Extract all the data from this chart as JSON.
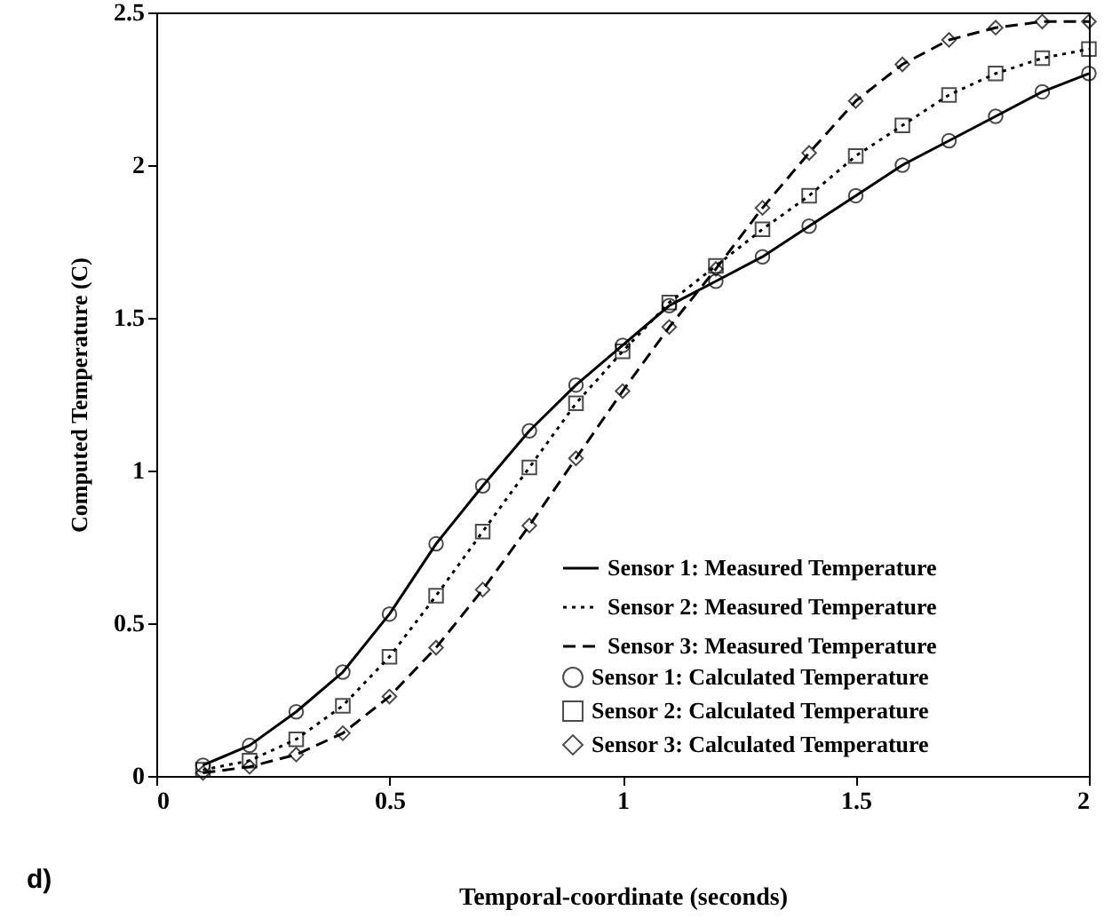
{
  "chart_data": {
    "type": "line",
    "xlabel": "Temporal-coordinate (seconds)",
    "ylabel": "Computed Temperature (C)",
    "annotations": [
      "d)"
    ],
    "x": [
      0.1,
      0.2,
      0.3,
      0.4,
      0.5,
      0.6,
      0.7,
      0.8,
      0.9,
      1.0,
      1.1,
      1.2,
      1.3,
      1.4,
      1.5,
      1.6,
      1.7,
      1.8,
      1.9,
      2.0
    ],
    "xlim": [
      0,
      2
    ],
    "xticks": [
      0,
      0.5,
      1,
      1.5,
      2
    ],
    "ylim": [
      0,
      2.5
    ],
    "yticks": [
      0,
      0.5,
      1,
      1.5,
      2,
      2.5
    ],
    "grid": false,
    "legend": "bottom right",
    "series": [
      {
        "name": "Sensor 1: Measured Temperature",
        "line_style": "solid",
        "color": "#000000",
        "values": [
          0.035,
          0.1,
          0.21,
          0.34,
          0.53,
          0.76,
          0.95,
          1.13,
          1.28,
          1.41,
          1.54,
          1.62,
          1.7,
          1.8,
          1.9,
          2.0,
          2.08,
          2.16,
          2.24,
          2.3
        ]
      },
      {
        "name": "Sensor 2: Measured Temperature",
        "line_style": "dotted",
        "color": "#000000",
        "values": [
          0.02,
          0.05,
          0.12,
          0.23,
          0.39,
          0.59,
          0.8,
          1.01,
          1.22,
          1.39,
          1.55,
          1.67,
          1.79,
          1.9,
          2.03,
          2.13,
          2.23,
          2.3,
          2.35,
          2.38
        ]
      },
      {
        "name": "Sensor 3: Measured Temperature",
        "line_style": "dashed",
        "color": "#000000",
        "values": [
          0.01,
          0.03,
          0.07,
          0.14,
          0.26,
          0.42,
          0.61,
          0.82,
          1.04,
          1.26,
          1.47,
          1.66,
          1.86,
          2.04,
          2.21,
          2.33,
          2.41,
          2.45,
          2.47,
          2.47
        ]
      },
      {
        "name": "Sensor 1: Calculated Temperature",
        "type": "scatter",
        "marker": "circle",
        "color": "#000000",
        "values": [
          0.035,
          0.1,
          0.21,
          0.34,
          0.53,
          0.76,
          0.95,
          1.13,
          1.28,
          1.41,
          1.54,
          1.62,
          1.7,
          1.8,
          1.9,
          2.0,
          2.08,
          2.16,
          2.24,
          2.3
        ]
      },
      {
        "name": "Sensor 2: Calculated Temperature",
        "type": "scatter",
        "marker": "square",
        "color": "#000000",
        "values": [
          0.02,
          0.05,
          0.12,
          0.23,
          0.39,
          0.59,
          0.8,
          1.01,
          1.22,
          1.39,
          1.55,
          1.67,
          1.79,
          1.9,
          2.03,
          2.13,
          2.23,
          2.3,
          2.35,
          2.38
        ]
      },
      {
        "name": "Sensor 3: Calculated Temperature",
        "type": "scatter",
        "marker": "diamond",
        "color": "#000000",
        "values": [
          0.01,
          0.03,
          0.07,
          0.14,
          0.26,
          0.42,
          0.61,
          0.82,
          1.04,
          1.26,
          1.47,
          1.66,
          1.86,
          2.04,
          2.21,
          2.33,
          2.41,
          2.45,
          2.47,
          2.47
        ]
      }
    ]
  }
}
